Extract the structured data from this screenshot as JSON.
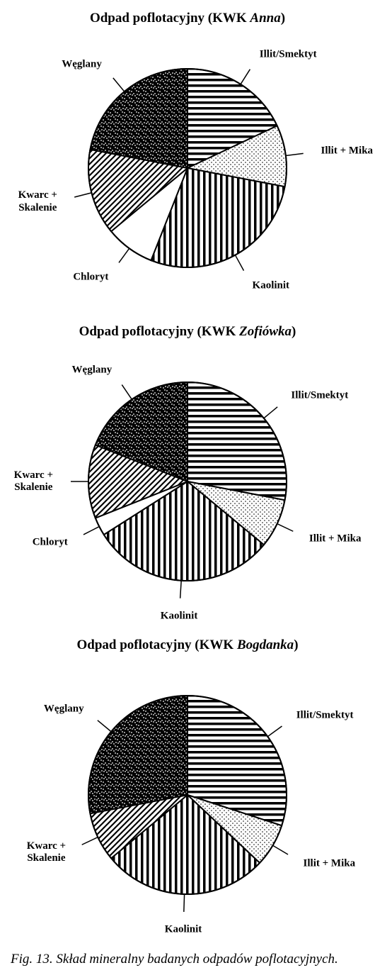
{
  "figure_caption": "Fig. 13. Skład mineralny badanych odpadów poflotacyjnych.",
  "pie_radius": 140,
  "stroke_color": "#000000",
  "background_color": "#ffffff",
  "label_fontsize": 15,
  "title_fontsize": 19,
  "charts": [
    {
      "title_prefix": "Odpad poflotacyjny (KWK ",
      "title_italic": "Anna",
      "title_suffix": ")",
      "start_angle_deg": 0,
      "slices": [
        {
          "label": "Illit/Smektyt",
          "value": 18,
          "pattern": "horiz"
        },
        {
          "label": "Illit + Mika",
          "value": 10,
          "pattern": "dots"
        },
        {
          "label": "Kaolinit",
          "value": 28,
          "pattern": "vert"
        },
        {
          "label": "Chloryt",
          "value": 8,
          "pattern": "white"
        },
        {
          "label": "Kwarc +\nSkalenie",
          "value": 14,
          "pattern": "diag"
        },
        {
          "label": "Węglany",
          "value": 22,
          "pattern": "noise"
        }
      ]
    },
    {
      "title_prefix": "Odpad poflotacyjny (KWK ",
      "title_italic": "Zofiówka",
      "title_suffix": ")",
      "start_angle_deg": 0,
      "slices": [
        {
          "label": "Illit/Smektyt",
          "value": 28,
          "pattern": "horiz"
        },
        {
          "label": "Illit + Mika",
          "value": 8,
          "pattern": "dots"
        },
        {
          "label": "Kaolinit",
          "value": 30,
          "pattern": "vert"
        },
        {
          "label": "Chloryt",
          "value": 3,
          "pattern": "white"
        },
        {
          "label": "Kwarc +\nSkalenie",
          "value": 12,
          "pattern": "diag"
        },
        {
          "label": "Węglany",
          "value": 19,
          "pattern": "noise"
        }
      ]
    },
    {
      "title_prefix": "Odpad poflotacyjny (KWK ",
      "title_italic": "Bogdanka",
      "title_suffix": ")",
      "start_angle_deg": 0,
      "slices": [
        {
          "label": "Illit/Smektyt",
          "value": 30,
          "pattern": "horiz"
        },
        {
          "label": "Illit + Mika",
          "value": 7,
          "pattern": "dots"
        },
        {
          "label": "Kaolinit",
          "value": 27,
          "pattern": "vert"
        },
        {
          "label": "Kwarc +\nSkalenie",
          "value": 8,
          "pattern": "diag"
        },
        {
          "label": "Węglany",
          "value": 28,
          "pattern": "noise"
        }
      ]
    }
  ]
}
